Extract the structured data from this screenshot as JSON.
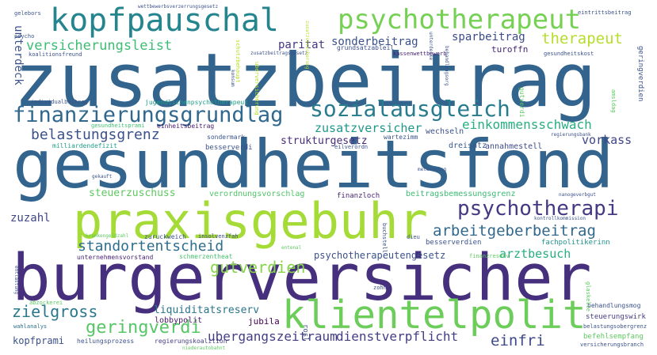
{
  "words": [
    {
      "text": "zusatzbeitrag",
      "color": "#32648e"
    },
    {
      "text": "gesundheitsfond",
      "color": "#32648e"
    },
    {
      "text": "burgerversicher",
      "color": "#46307e"
    },
    {
      "text": "praxisgebuhr",
      "color": "#a5db36"
    },
    {
      "text": "kopfpauschal",
      "color": "#25858e"
    },
    {
      "text": "psychotherapeut",
      "color": "#75d054"
    },
    {
      "text": "klientelpolit",
      "color": "#6ccd5a"
    },
    {
      "text": "finanzierungsgrundlag",
      "color": "#31688e"
    },
    {
      "text": "sozialausgleich",
      "color": "#297b8e"
    },
    {
      "text": "psychotherapi",
      "color": "#443983"
    },
    {
      "text": "arbeitgeberbeitrag",
      "color": "#31688e"
    },
    {
      "text": "standortentscheid",
      "color": "#2e6e8e"
    },
    {
      "text": "belastungsgrenz",
      "color": "#3b518b"
    },
    {
      "text": "zielgross",
      "color": "#2a788e"
    },
    {
      "text": "geringverdi",
      "color": "#56c667"
    },
    {
      "text": "versicherungsleist",
      "color": "#3dbc74"
    },
    {
      "text": "therapeut",
      "color": "#b5de2b"
    },
    {
      "text": "gutverdien",
      "color": "#86d549"
    },
    {
      "text": "einkommensschwach",
      "color": "#28ae80"
    },
    {
      "text": "einfri",
      "color": "#3e4989"
    },
    {
      "text": "zusatzversicher",
      "color": "#1f968b"
    },
    {
      "text": "ubergangszeitraum",
      "color": "#433e85"
    },
    {
      "text": "dienstverpflicht",
      "color": "#433e85"
    },
    {
      "text": "arztbesuch",
      "color": "#27ad81"
    },
    {
      "text": "sparbeitrag",
      "color": "#3e4a89"
    },
    {
      "text": "sonderbeitrag",
      "color": "#3b528b"
    },
    {
      "text": "paritat",
      "color": "#453781"
    },
    {
      "text": "vorkass",
      "color": "#3f4788"
    },
    {
      "text": "strukturgesetz",
      "color": "#472c7a"
    },
    {
      "text": "steuerzuschuss",
      "color": "#5ec962"
    },
    {
      "text": "verordnungsvorschlag",
      "color": "#50c46a"
    },
    {
      "text": "beitragsbemessungsgrenz",
      "color": "#3cbb75"
    },
    {
      "text": "psychotherapeutengesetz",
      "color": "#3b518b"
    },
    {
      "text": "liquiditatsreserv",
      "color": "#2a768e"
    },
    {
      "text": "lobbypolit",
      "color": "#481668"
    },
    {
      "text": "regierungskoalition",
      "color": "#433e85"
    },
    {
      "text": "kopfprami",
      "color": "#3b528b"
    },
    {
      "text": "jubila",
      "color": "#440154"
    },
    {
      "text": "unterdeck",
      "color": "#3b528b"
    },
    {
      "text": "zuzahl",
      "color": "#404688"
    },
    {
      "text": "finanzloch",
      "color": "#482475"
    },
    {
      "text": "turoffn",
      "color": "#482878"
    },
    {
      "text": "wechseln",
      "color": "#3b528b"
    },
    {
      "text": "annahmestell",
      "color": "#3e4a89"
    },
    {
      "text": "dreisatz",
      "color": "#38598c"
    },
    {
      "text": "steuerungswirk",
      "color": "#443a83"
    },
    {
      "text": "befehlsempfang",
      "color": "#5ec962"
    },
    {
      "text": "behandlungsmog",
      "color": "#3b528b"
    },
    {
      "text": "besserverdien",
      "color": "#3b528b"
    },
    {
      "text": "fachpolitikerinn",
      "color": "#21918c"
    },
    {
      "text": "zuruckweich",
      "color": "#3b528b"
    },
    {
      "text": "insolvenzfah",
      "color": "#3e4989"
    },
    {
      "text": "schmerzentheat",
      "color": "#48c16e"
    },
    {
      "text": "unternehmensvorstand",
      "color": "#482475"
    },
    {
      "text": "heilungsprozess",
      "color": "#3b528b"
    },
    {
      "text": "wahlanalys",
      "color": "#2c728e"
    },
    {
      "text": "abzockerei",
      "color": "#5ec962"
    },
    {
      "text": "einheitsbeitrag",
      "color": "#481a6c"
    },
    {
      "text": "jugendlichenpsychotherapeut",
      "color": "#1f9e89"
    },
    {
      "text": "gesundheitsprami",
      "color": "#46c06f"
    },
    {
      "text": "milliardendefizit",
      "color": "#1f9e89"
    },
    {
      "text": "individualbeitrag",
      "color": "#3b528b"
    },
    {
      "text": "sondermark",
      "color": "#3b528b"
    },
    {
      "text": "wartezimm",
      "color": "#3b528b"
    },
    {
      "text": "eilverordn",
      "color": "#3b528b"
    },
    {
      "text": "regierungsbank",
      "color": "#3b528b"
    },
    {
      "text": "grundsatzableil",
      "color": "#3b528b"
    },
    {
      "text": "kassenwettbewerb",
      "color": "#482475"
    },
    {
      "text": "zusatzbeitragsgesetz",
      "color": "#3b528b"
    },
    {
      "text": "gesundheitskost",
      "color": "#3b528b"
    },
    {
      "text": "wettbewerbsverzerrungsgesetz",
      "color": "#3b528b"
    },
    {
      "text": "eintrittsbeitrag",
      "color": "#3b528b"
    },
    {
      "text": "gelebors",
      "color": "#3b528b"
    },
    {
      "text": "psycho",
      "color": "#3b528b"
    },
    {
      "text": "koalitionsfreund",
      "color": "#3b528b"
    },
    {
      "text": "sachleistungsprinzips",
      "color": "#3b528b"
    },
    {
      "text": "belastungsobergrenz",
      "color": "#3b528b"
    },
    {
      "text": "versicherungsbranch",
      "color": "#3b528b"
    },
    {
      "text": "nanogeverbgut",
      "color": "#3b528b"
    },
    {
      "text": "kontrollkommission",
      "color": "#3b528b"
    },
    {
      "text": "krankengeldzahl",
      "color": "#5ec962"
    },
    {
      "text": "finanzreserv",
      "color": "#5ec962"
    },
    {
      "text": "niederautobahnt",
      "color": "#5ec962"
    },
    {
      "text": "meteorolog",
      "color": "#3b528b"
    },
    {
      "text": "gekauft",
      "color": "#3b528b"
    },
    {
      "text": "besserverdi",
      "color": "#3b528b"
    },
    {
      "text": "dieu",
      "color": "#3b528b"
    },
    {
      "text": "entenal",
      "color": "#5ec962"
    },
    {
      "text": "zohn",
      "color": "#3b528b"
    },
    {
      "text": "rosl",
      "color": "#3b528b"
    },
    {
      "text": "geringverdien",
      "color": "#3b528b"
    },
    {
      "text": "schutzbehaupt",
      "color": "#b5de2b"
    },
    {
      "text": "uberversicherung",
      "color": "#b5de2b"
    },
    {
      "text": "konsum",
      "color": "#3b528b"
    },
    {
      "text": "behandlungsorg",
      "color": "#3b528b"
    },
    {
      "text": "gutverdi",
      "color": "#5ec962"
    },
    {
      "text": "amsldag",
      "color": "#5ec962"
    },
    {
      "text": "glaskelle",
      "color": "#5ec962"
    },
    {
      "text": "buchstell",
      "color": "#3b528b"
    },
    {
      "text": "entlastung",
      "color": "#3b528b"
    },
    {
      "text": "unterdecke",
      "color": "#3b528b"
    },
    {
      "text": "zusatzverscherung",
      "color": "#3b528b"
    }
  ]
}
